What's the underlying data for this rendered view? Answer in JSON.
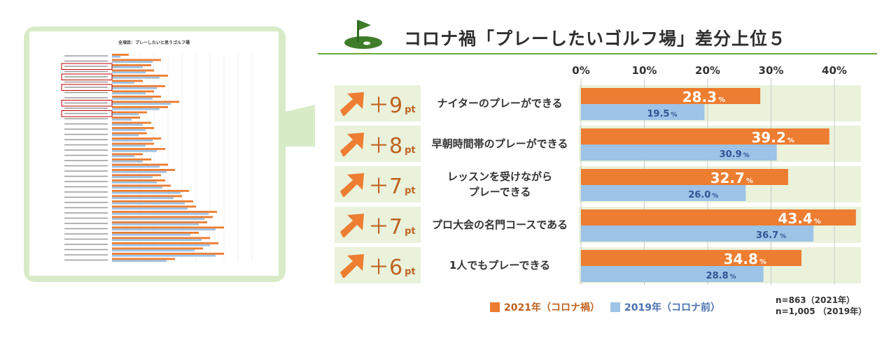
{
  "title": "コロナ禍「プレーしたいゴルフ場」差分上位５",
  "thumbnail": {
    "title": "全項目：プレーしたいと思うゴルフ場"
  },
  "colors": {
    "y2021": "#ed7d31",
    "y2019": "#9dc3e6",
    "accent_green": "#6aaa3a",
    "row_bg": "#eaf2dc",
    "diff_text": "#c0621e"
  },
  "legend": {
    "y2021": "2021年（コロナ禍）",
    "y2019": "2019年（コロナ前）"
  },
  "sample_size": {
    "y2021": "n=863（2021年）",
    "y2019": "n=1,005 （2019年）"
  },
  "chart_data": {
    "type": "bar",
    "orientation": "horizontal",
    "title": "コロナ禍「プレーしたいゴルフ場」差分上位５",
    "xlim": [
      0,
      45
    ],
    "x_ticks": [
      0,
      10,
      20,
      30,
      40
    ],
    "x_tick_labels": [
      "0%",
      "10%",
      "20%",
      "30%",
      "40%"
    ],
    "categories": [
      "ナイターのプレーができる",
      "早朝時間帯のプレーができる",
      "レッスンを受けながら\nプレーできる",
      "プロ大会の名門コースである",
      "1人でもプレーできる"
    ],
    "diff": [
      "＋9",
      "＋8",
      "＋7",
      "＋7",
      "＋6"
    ],
    "diff_unit": "pt",
    "value_unit": "%",
    "series": [
      {
        "name": "2021年（コロナ禍）",
        "values": [
          28.3,
          39.2,
          32.7,
          43.4,
          34.8
        ],
        "labels": [
          "28.3",
          "39.2",
          "32.7",
          "43.4",
          "34.8"
        ]
      },
      {
        "name": "2019年（コロナ前）",
        "values": [
          19.5,
          30.9,
          26.0,
          36.7,
          28.8
        ],
        "labels": [
          "19.5",
          "30.9",
          "26.0",
          "36.7",
          "28.8"
        ]
      }
    ]
  }
}
